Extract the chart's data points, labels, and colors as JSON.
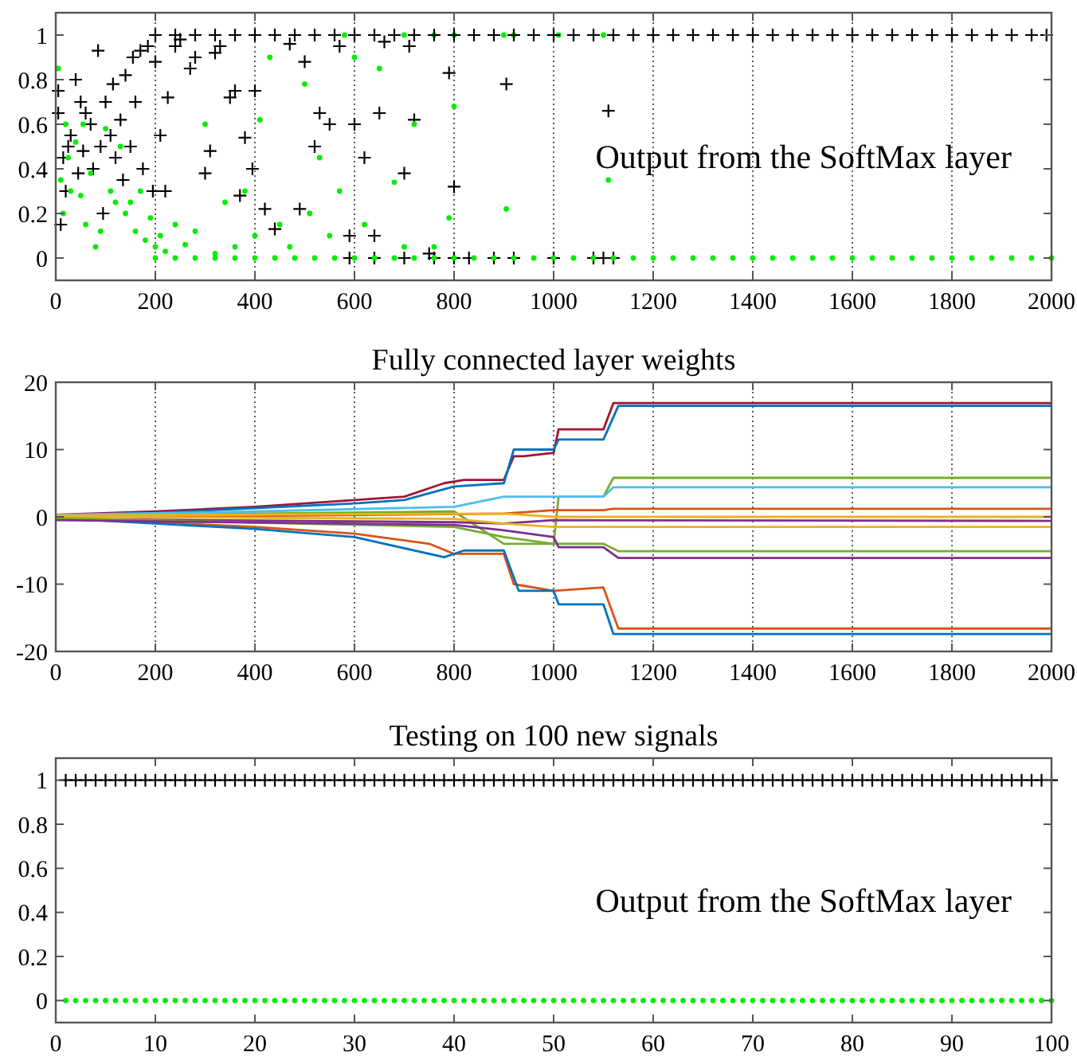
{
  "chart_data": [
    {
      "type": "scatter",
      "annotations": [
        "Output from the SoftMax layer"
      ],
      "xlim": [
        0,
        2000
      ],
      "xticks": [
        0,
        200,
        400,
        600,
        800,
        1000,
        1200,
        1400,
        1600,
        1800,
        2000
      ],
      "ylim": [
        -0.1,
        1.1
      ],
      "yticks": [
        0,
        0.2,
        0.4,
        0.6,
        0.8,
        1
      ],
      "grid": "x",
      "series": [
        {
          "color": "#000000",
          "marker": "cross",
          "x": [
            5,
            5,
            10,
            15,
            20,
            25,
            30,
            40,
            45,
            50,
            55,
            60,
            70,
            75,
            85,
            90,
            95,
            100,
            110,
            115,
            120,
            130,
            135,
            140,
            150,
            155,
            160,
            170,
            175,
            185,
            195,
            200,
            210,
            220,
            225,
            240,
            250,
            270,
            280,
            300,
            310,
            320,
            330,
            350,
            360,
            370,
            380,
            395,
            400,
            420,
            440,
            470,
            490,
            500,
            520,
            530,
            550,
            570,
            590,
            600,
            620,
            640,
            650,
            660,
            700,
            710,
            720,
            750,
            790,
            800,
            905,
            1110
          ],
          "values": [
            0.75,
            0.65,
            0.15,
            0.45,
            0.3,
            0.5,
            0.55,
            0.8,
            0.38,
            0.7,
            0.48,
            0.65,
            0.6,
            0.4,
            0.93,
            0.5,
            0.2,
            0.7,
            0.55,
            0.78,
            0.45,
            0.62,
            0.35,
            0.82,
            0.5,
            0.9,
            0.7,
            0.93,
            0.4,
            0.95,
            0.3,
            0.88,
            0.55,
            0.3,
            0.72,
            0.95,
            0.98,
            0.85,
            0.9,
            0.38,
            0.48,
            0.92,
            0.95,
            0.72,
            0.75,
            0.28,
            0.54,
            0.4,
            0.75,
            0.22,
            0.13,
            0.96,
            0.22,
            0.88,
            0.5,
            0.65,
            0.6,
            0.95,
            0.1,
            0.6,
            0.45,
            0.1,
            0.65,
            0.97,
            0.38,
            0.95,
            0.62,
            0.02,
            0.83,
            0.32,
            0.78,
            0.66
          ]
        },
        {
          "color": "#000000",
          "marker": "cross",
          "x": [
            590,
            640,
            700,
            760,
            800,
            830,
            880,
            920,
            1000,
            1080,
            1100,
            1120
          ],
          "values": [
            0,
            0,
            0,
            0,
            0,
            0,
            0,
            0,
            0,
            0,
            0,
            0
          ]
        },
        {
          "color": "#00ee00",
          "marker": "circle",
          "x": [
            5,
            10,
            15,
            20,
            25,
            30,
            40,
            50,
            55,
            60,
            70,
            80,
            90,
            100,
            110,
            120,
            130,
            140,
            150,
            160,
            170,
            180,
            190,
            200,
            210,
            220,
            240,
            260,
            280,
            300,
            320,
            340,
            360,
            380,
            400,
            410,
            430,
            450,
            470,
            500,
            510,
            530,
            550,
            570,
            600,
            620,
            650,
            680,
            700,
            720,
            760,
            790,
            800,
            905,
            1110,
            580,
            700,
            760,
            800,
            900,
            920,
            1010,
            1100
          ],
          "values": [
            0.85,
            0.35,
            0.2,
            0.6,
            0.45,
            0.3,
            0.52,
            0.28,
            0.6,
            0.15,
            0.38,
            0.05,
            0.12,
            0.58,
            0.3,
            0.25,
            0.5,
            0.2,
            0.25,
            0.12,
            0.3,
            0.08,
            0.18,
            0.05,
            0.1,
            0.03,
            0.15,
            0.06,
            0.12,
            0.6,
            0.02,
            0.25,
            0.05,
            0.3,
            0.1,
            0.62,
            0.9,
            0.15,
            0.05,
            0.78,
            0.2,
            0.45,
            0.1,
            0.3,
            0.9,
            0.15,
            0.85,
            0.34,
            0.05,
            0.6,
            0.05,
            0.18,
            0.68,
            0.22,
            0.35,
            1,
            1,
            1,
            1,
            1,
            1,
            1,
            1
          ]
        },
        {
          "color": "#000000",
          "marker": "cross",
          "x": [
            200,
            240,
            280,
            320,
            360,
            400,
            440,
            480,
            520,
            560,
            600,
            640,
            680,
            720,
            760,
            800,
            840,
            880,
            920,
            960,
            1000,
            1040,
            1080,
            1120,
            1160,
            1200,
            1240,
            1280,
            1320,
            1360,
            1400,
            1440,
            1480,
            1520,
            1560,
            1600,
            1640,
            1680,
            1720,
            1760,
            1800,
            1840,
            1880,
            1920,
            1960,
            1990
          ],
          "values": [
            1,
            1,
            1,
            1,
            1,
            1,
            1,
            1,
            1,
            1,
            1,
            1,
            1,
            1,
            1,
            1,
            1,
            1,
            1,
            1,
            1,
            1,
            1,
            1,
            1,
            1,
            1,
            1,
            1,
            1,
            1,
            1,
            1,
            1,
            1,
            1,
            1,
            1,
            1,
            1,
            1,
            1,
            1,
            1,
            1,
            1
          ]
        },
        {
          "color": "#00ee00",
          "marker": "circle",
          "x": [
            200,
            240,
            280,
            320,
            360,
            400,
            440,
            480,
            520,
            560,
            600,
            640,
            680,
            720,
            760,
            800,
            840,
            880,
            920,
            960,
            1000,
            1040,
            1080,
            1120,
            1160,
            1200,
            1240,
            1280,
            1320,
            1360,
            1400,
            1440,
            1480,
            1520,
            1560,
            1600,
            1640,
            1680,
            1720,
            1760,
            1800,
            1840,
            1880,
            1920,
            1960,
            2000
          ],
          "values": [
            0,
            0,
            0,
            0,
            0,
            0,
            0,
            0,
            0,
            0,
            0,
            0,
            0,
            0,
            0,
            0,
            0,
            0,
            0,
            0,
            0,
            0,
            0,
            0,
            0,
            0,
            0,
            0,
            0,
            0,
            0,
            0,
            0,
            0,
            0,
            0,
            0,
            0,
            0,
            0,
            0,
            0,
            0,
            0,
            0,
            0
          ]
        }
      ]
    },
    {
      "type": "line",
      "title": "Fully connected layer weights",
      "xlim": [
        0,
        2000
      ],
      "xticks": [
        0,
        200,
        400,
        600,
        800,
        1000,
        1200,
        1400,
        1600,
        1800,
        2000
      ],
      "ylim": [
        -20,
        20
      ],
      "yticks": [
        -20,
        -10,
        0,
        10,
        20
      ],
      "grid": "x",
      "series": [
        {
          "color": "#a2142f",
          "x": [
            0,
            200,
            400,
            600,
            700,
            780,
            820,
            900,
            920,
            940,
            1000,
            1010,
            1100,
            1120,
            2000
          ],
          "values": [
            0.3,
            0.8,
            1.5,
            2.5,
            3,
            5,
            5.5,
            5.5,
            9,
            9,
            9.5,
            13,
            13,
            16.9,
            16.9
          ]
        },
        {
          "color": "#0072bd",
          "x": [
            0,
            200,
            400,
            600,
            700,
            800,
            900,
            920,
            1000,
            1010,
            1100,
            1130,
            2000
          ],
          "values": [
            0.2,
            0.6,
            1.3,
            2,
            2.5,
            4.5,
            5,
            10,
            10,
            11.5,
            11.5,
            16.5,
            16.5
          ]
        },
        {
          "color": "#d95319",
          "x": [
            0,
            200,
            400,
            600,
            750,
            800,
            900,
            920,
            1000,
            1100,
            1130,
            2000
          ],
          "values": [
            -0.3,
            -0.8,
            -1.5,
            -2.5,
            -4,
            -5.5,
            -5.5,
            -10,
            -11,
            -10.5,
            -16.6,
            -16.6
          ]
        },
        {
          "color": "#0072bd",
          "x": [
            0,
            200,
            400,
            600,
            780,
            820,
            900,
            930,
            1000,
            1010,
            1100,
            1120,
            2000
          ],
          "values": [
            -0.2,
            -1,
            -1.8,
            -3,
            -6,
            -5,
            -5,
            -11,
            -11,
            -13,
            -13,
            -17.4,
            -17.4
          ]
        },
        {
          "color": "#77ac30",
          "x": [
            0,
            400,
            800,
            900,
            1000,
            1010,
            1100,
            1120,
            2000
          ],
          "values": [
            0.1,
            0.5,
            0.8,
            -4,
            -4,
            3,
            3,
            5.8,
            5.8
          ]
        },
        {
          "color": "#4dbeee",
          "x": [
            0,
            400,
            800,
            900,
            1100,
            1120,
            2000
          ],
          "values": [
            0.3,
            0.8,
            1.5,
            3,
            3,
            4.4,
            4.4
          ]
        },
        {
          "color": "#d95319",
          "x": [
            0,
            500,
            900,
            1000,
            1100,
            1120,
            2000
          ],
          "values": [
            0,
            0.2,
            0.5,
            1,
            1,
            1.2,
            1.2
          ]
        },
        {
          "color": "#7e2f8e",
          "x": [
            0,
            800,
            900,
            1000,
            2000
          ],
          "values": [
            -0.3,
            -0.8,
            -1,
            -0.5,
            -0.6
          ]
        },
        {
          "color": "#edb120",
          "x": [
            0,
            800,
            900,
            1000,
            2000
          ],
          "values": [
            0,
            -0.3,
            -1,
            -1.5,
            -1.5
          ]
        },
        {
          "color": "#77ac30",
          "x": [
            0,
            800,
            900,
            1000,
            1100,
            1130,
            2000
          ],
          "values": [
            -0.2,
            -1.5,
            -3,
            -4,
            -4,
            -5.1,
            -5.1
          ]
        },
        {
          "color": "#7e2f8e",
          "x": [
            0,
            800,
            900,
            1000,
            1010,
            1100,
            1130,
            2000
          ],
          "values": [
            -0.5,
            -1.2,
            -2,
            -3,
            -4.5,
            -4.5,
            -6.1,
            -6.1
          ]
        },
        {
          "color": "#edb120",
          "x": [
            0,
            900,
            1000,
            2000
          ],
          "values": [
            0.2,
            0.5,
            0,
            0
          ]
        }
      ]
    },
    {
      "type": "scatter",
      "title": "Testing on 100 new signals",
      "annotations": [
        "Output from the SoftMax layer"
      ],
      "xlim": [
        0,
        100
      ],
      "xticks": [
        0,
        10,
        20,
        30,
        40,
        50,
        60,
        70,
        80,
        90,
        100
      ],
      "ylim": [
        -0.1,
        1.1
      ],
      "yticks": [
        0,
        0.2,
        0.4,
        0.6,
        0.8,
        1
      ],
      "x": [
        1,
        2,
        3,
        4,
        5,
        6,
        7,
        8,
        9,
        10,
        11,
        12,
        13,
        14,
        15,
        16,
        17,
        18,
        19,
        20,
        21,
        22,
        23,
        24,
        25,
        26,
        27,
        28,
        29,
        30,
        31,
        32,
        33,
        34,
        35,
        36,
        37,
        38,
        39,
        40,
        41,
        42,
        43,
        44,
        45,
        46,
        47,
        48,
        49,
        50,
        51,
        52,
        53,
        54,
        55,
        56,
        57,
        58,
        59,
        60,
        61,
        62,
        63,
        64,
        65,
        66,
        67,
        68,
        69,
        70,
        71,
        72,
        73,
        74,
        75,
        76,
        77,
        78,
        79,
        80,
        81,
        82,
        83,
        84,
        85,
        86,
        87,
        88,
        89,
        90,
        91,
        92,
        93,
        94,
        95,
        96,
        97,
        98,
        99,
        100
      ],
      "series": [
        {
          "color": "#000000",
          "marker": "cross",
          "values": [
            1,
            1,
            1,
            1,
            1,
            1,
            1,
            1,
            1,
            1,
            1,
            1,
            1,
            1,
            1,
            1,
            1,
            1,
            1,
            1,
            1,
            1,
            1,
            1,
            1,
            1,
            1,
            1,
            1,
            1,
            1,
            1,
            1,
            1,
            1,
            1,
            1,
            1,
            1,
            1,
            1,
            1,
            1,
            1,
            1,
            1,
            1,
            1,
            1,
            1,
            1,
            1,
            1,
            1,
            1,
            1,
            1,
            1,
            1,
            1,
            1,
            1,
            1,
            1,
            1,
            1,
            1,
            1,
            1,
            1,
            1,
            1,
            1,
            1,
            1,
            1,
            1,
            1,
            1,
            1,
            1,
            1,
            1,
            1,
            1,
            1,
            1,
            1,
            1,
            1,
            1,
            1,
            1,
            1,
            1,
            1,
            1,
            1,
            1,
            1
          ]
        },
        {
          "color": "#00ee00",
          "marker": "circle",
          "values": [
            0,
            0,
            0,
            0,
            0,
            0,
            0,
            0,
            0,
            0,
            0,
            0,
            0,
            0,
            0,
            0,
            0,
            0,
            0,
            0,
            0,
            0,
            0,
            0,
            0,
            0,
            0,
            0,
            0,
            0,
            0,
            0,
            0,
            0,
            0,
            0,
            0,
            0,
            0,
            0,
            0,
            0,
            0,
            0,
            0,
            0,
            0,
            0,
            0,
            0,
            0,
            0,
            0,
            0,
            0,
            0,
            0,
            0,
            0,
            0,
            0,
            0,
            0,
            0,
            0,
            0,
            0,
            0,
            0,
            0,
            0,
            0,
            0,
            0,
            0,
            0,
            0,
            0,
            0,
            0,
            0,
            0,
            0,
            0,
            0,
            0,
            0,
            0,
            0,
            0,
            0,
            0,
            0,
            0,
            0,
            0,
            0,
            0,
            0,
            0
          ]
        }
      ]
    }
  ]
}
